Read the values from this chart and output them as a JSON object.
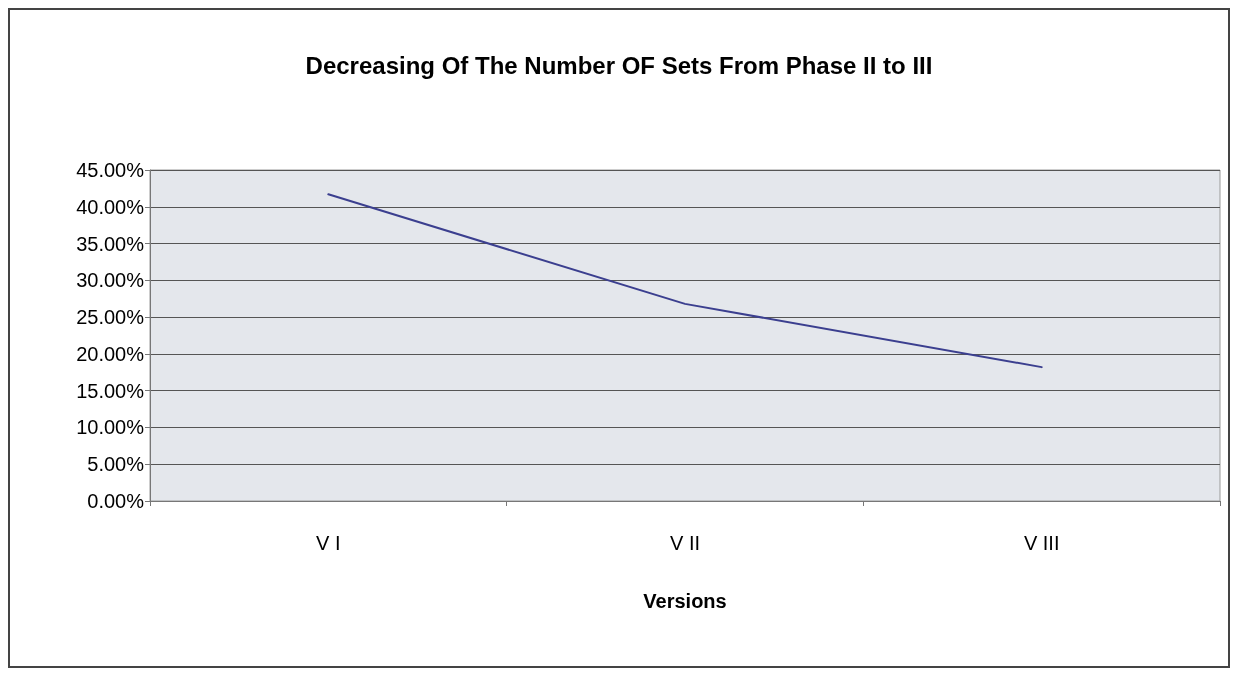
{
  "chart_data": {
    "type": "line",
    "title": "Decreasing Of The Number OF Sets From Phase II to III",
    "xlabel": "Versions",
    "categories": [
      "V I",
      "V II",
      "V III"
    ],
    "series": [
      {
        "color": "#3b3f8f",
        "values": [
          0.417,
          0.268,
          0.182
        ]
      }
    ],
    "ylim": [
      0,
      0.45
    ],
    "yticks": [
      {
        "value": 0,
        "label": "0.00%"
      },
      {
        "value": 0.05,
        "label": "5.00%"
      },
      {
        "value": 0.1,
        "label": "10.00%"
      },
      {
        "value": 0.15,
        "label": "15.00%"
      },
      {
        "value": 0.2,
        "label": "20.00%"
      },
      {
        "value": 0.25,
        "label": "25.00%"
      },
      {
        "value": 0.3,
        "label": "30.00%"
      },
      {
        "value": 0.35,
        "label": "35.00%"
      },
      {
        "value": 0.4,
        "label": "40.00%"
      },
      {
        "value": 0.45,
        "label": "45.00%"
      }
    ],
    "grid": "y",
    "marker": "none",
    "line_style": "solid"
  }
}
